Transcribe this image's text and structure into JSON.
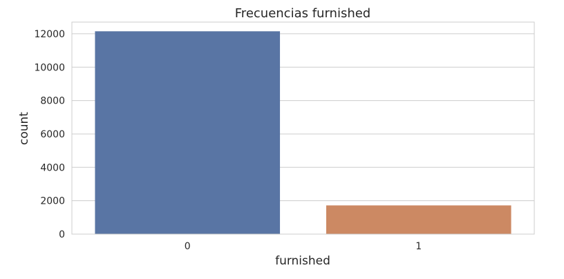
{
  "chart_data": {
    "type": "bar",
    "title": "Frecuencias  furnished",
    "xlabel": "furnished",
    "ylabel": "count",
    "categories": [
      "0",
      "1"
    ],
    "values": [
      12150,
      1720
    ],
    "ylim": [
      0,
      12700
    ],
    "yticks": [
      0,
      2000,
      4000,
      6000,
      8000,
      10000,
      12000
    ],
    "grid": true,
    "colors": [
      "#5975a4",
      "#cc8963"
    ]
  }
}
